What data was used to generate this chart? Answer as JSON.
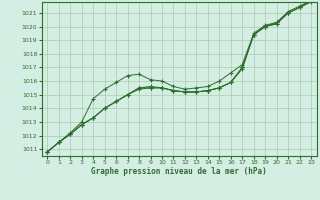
{
  "title": "Graphe pression niveau de la mer (hPa)",
  "background_color": "#d4eee4",
  "grid_color": "#aaccaa",
  "line_color": "#2d6e2d",
  "marker_color": "#2d6e2d",
  "xlim": [
    -0.5,
    23.5
  ],
  "ylim": [
    1010.5,
    1021.8
  ],
  "yticks": [
    1011,
    1012,
    1013,
    1014,
    1015,
    1016,
    1017,
    1018,
    1019,
    1020,
    1021
  ],
  "xticks": [
    0,
    1,
    2,
    3,
    4,
    5,
    6,
    7,
    8,
    9,
    10,
    11,
    12,
    13,
    14,
    15,
    16,
    17,
    18,
    19,
    20,
    21,
    22,
    23
  ],
  "series1_x": [
    0,
    1,
    2,
    3,
    4,
    5,
    6,
    7,
    8,
    9,
    10,
    11,
    12,
    13,
    14,
    15,
    16,
    17,
    18,
    19,
    20,
    21,
    22,
    23
  ],
  "series1_y": [
    1010.8,
    1011.5,
    1012.1,
    1012.8,
    1013.3,
    1014.0,
    1014.5,
    1015.0,
    1015.4,
    1015.5,
    1015.5,
    1015.3,
    1015.2,
    1015.2,
    1015.3,
    1015.5,
    1015.9,
    1016.9,
    1019.4,
    1020.0,
    1020.2,
    1021.0,
    1021.4,
    1021.8
  ],
  "series2_x": [
    0,
    1,
    2,
    3,
    4,
    5,
    6,
    7,
    8,
    9,
    10,
    11,
    12,
    13,
    14,
    15,
    16,
    17,
    18,
    19,
    20,
    21,
    22,
    23
  ],
  "series2_y": [
    1010.8,
    1011.5,
    1012.1,
    1012.8,
    1013.3,
    1014.0,
    1014.5,
    1015.0,
    1015.5,
    1015.5,
    1015.5,
    1015.3,
    1015.2,
    1015.2,
    1015.3,
    1015.5,
    1015.9,
    1017.0,
    1019.4,
    1020.0,
    1020.2,
    1021.0,
    1021.4,
    1021.9
  ],
  "series3_x": [
    0,
    1,
    2,
    3,
    4,
    5,
    6,
    7,
    8,
    9,
    10,
    11,
    12,
    13,
    14,
    15,
    16,
    17,
    18,
    19,
    20,
    21,
    22,
    23
  ],
  "series3_y": [
    1010.8,
    1011.5,
    1012.1,
    1012.8,
    1013.3,
    1014.0,
    1014.5,
    1015.0,
    1015.5,
    1015.6,
    1015.5,
    1015.3,
    1015.2,
    1015.2,
    1015.3,
    1015.5,
    1015.9,
    1017.0,
    1019.4,
    1020.0,
    1020.3,
    1021.0,
    1021.4,
    1021.9
  ],
  "series4_x": [
    0,
    1,
    2,
    3,
    4,
    5,
    6,
    7,
    8,
    9,
    10,
    11,
    12,
    13,
    14,
    15,
    16,
    17,
    18,
    19,
    20,
    21,
    22,
    23
  ],
  "series4_y": [
    1010.8,
    1011.5,
    1012.2,
    1013.0,
    1014.7,
    1015.4,
    1015.9,
    1016.4,
    1016.5,
    1016.1,
    1016.0,
    1015.6,
    1015.4,
    1015.5,
    1015.6,
    1016.0,
    1016.6,
    1017.2,
    1019.5,
    1020.1,
    1020.3,
    1021.1,
    1021.5,
    1021.9
  ]
}
